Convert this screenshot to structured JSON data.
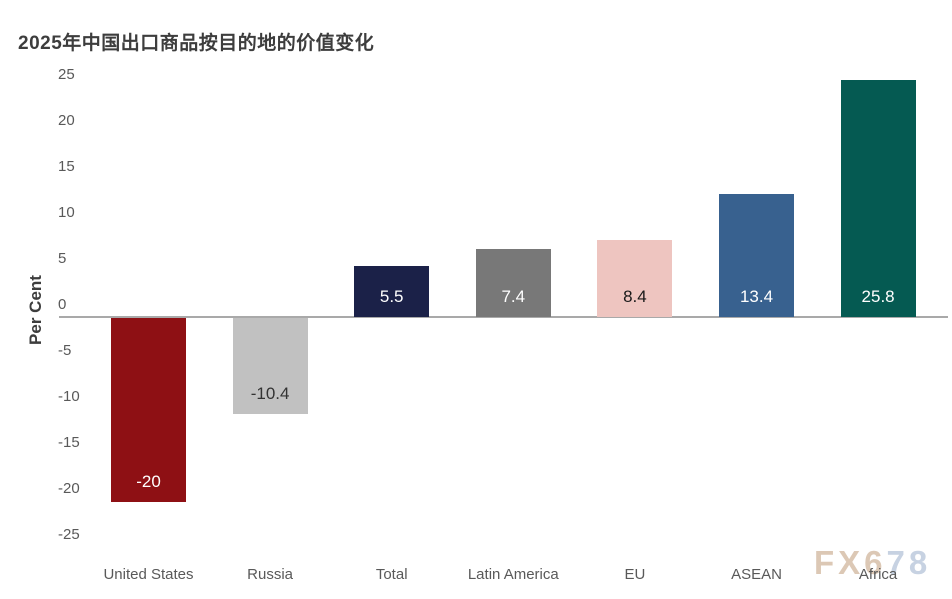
{
  "title": "2025年中国出口商品按目的地的价值变化",
  "y_axis": {
    "label": "Per Cent",
    "ticks": [
      25,
      20,
      15,
      10,
      5,
      0,
      -5,
      -10,
      -15,
      -20,
      -25
    ]
  },
  "watermark": {
    "part1": "FX6",
    "part2": "78",
    "color1": "#dcc8b5",
    "color2": "#c7d2e2"
  },
  "colors": {
    "title_text": "#3d3d3d",
    "tick_text": "#595959",
    "axis_line": "#a9a9a9"
  },
  "chart_data": {
    "type": "bar",
    "title": "2025年中国出口商品按目的地的价值变化",
    "xlabel": "",
    "ylabel": "Per Cent",
    "ylim": [
      -25,
      25
    ],
    "ytick_step": 5,
    "grid": false,
    "legend": false,
    "categories": [
      "United States",
      "Russia",
      "Total",
      "Latin America",
      "EU",
      "ASEAN",
      "Africa"
    ],
    "values": [
      -20,
      -10.4,
      5.5,
      7.4,
      8.4,
      13.4,
      25.8
    ],
    "value_labels": [
      "-20",
      "-10.4",
      "5.5",
      "7.4",
      "8.4",
      "13.4",
      "25.8"
    ],
    "bar_colors": [
      "#8e1014",
      "#c1c1c1",
      "#1b2148",
      "#787878",
      "#eec5c0",
      "#38618f",
      "#055a52"
    ],
    "label_colors": [
      "#ffffff",
      "#333333",
      "#ffffff",
      "#ffffff",
      "#1a1a1a",
      "#ffffff",
      "#ffffff"
    ]
  }
}
